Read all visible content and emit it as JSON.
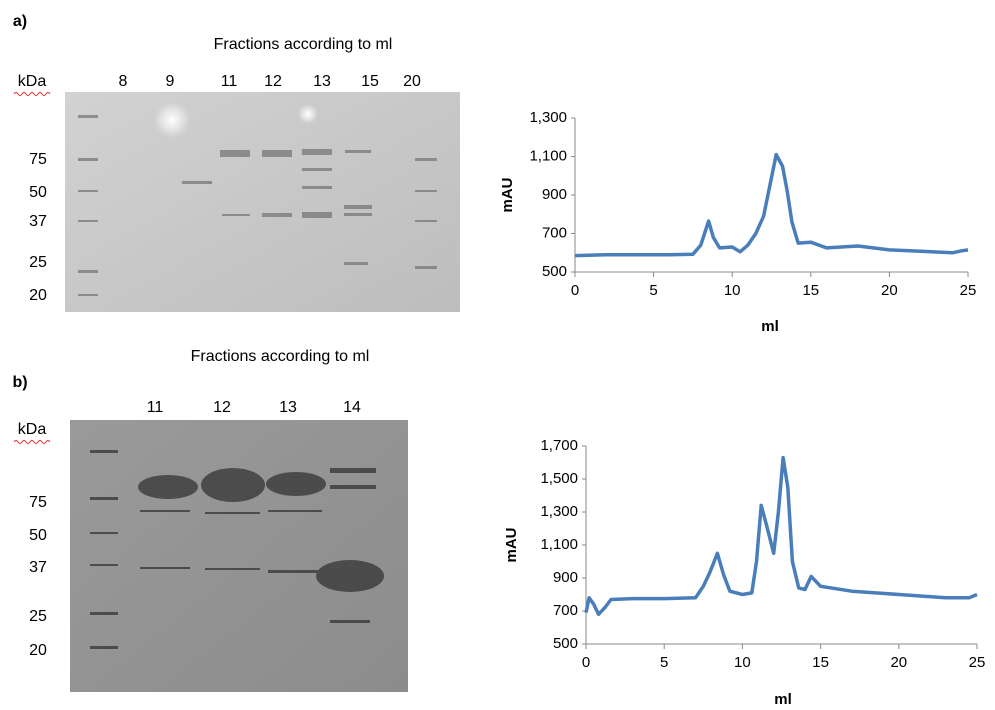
{
  "figure": {
    "panels": [
      {
        "label": "a)",
        "title": "Fractions according to ml",
        "kda": "kDa",
        "lanes": [
          "8",
          "9",
          "11",
          "12",
          "13",
          "15",
          "20"
        ],
        "markers": [
          "75",
          "50",
          "37",
          "25",
          "20"
        ]
      },
      {
        "label": "b)",
        "title": "Fractions according to ml",
        "kda": "kDa",
        "lanes": [
          "11",
          "12",
          "13",
          "14"
        ],
        "markers": [
          "75",
          "50",
          "37",
          "25",
          "20"
        ]
      }
    ]
  },
  "chart_data": [
    {
      "type": "line",
      "xlabel": "ml",
      "ylabel": "mAU",
      "color": "#4a7ebb",
      "x": [
        0,
        2,
        4,
        6,
        7.5,
        8,
        8.5,
        8.8,
        9.2,
        10,
        10.5,
        11,
        11.5,
        12,
        12.4,
        12.8,
        13.2,
        13.5,
        13.8,
        14.2,
        15,
        16,
        18,
        20,
        22,
        24,
        24.6,
        25
      ],
      "values": [
        585,
        590,
        590,
        590,
        592,
        640,
        765,
        680,
        625,
        630,
        605,
        640,
        700,
        790,
        950,
        1110,
        1050,
        920,
        760,
        650,
        655,
        625,
        635,
        615,
        608,
        600,
        610,
        615
      ],
      "xlim": [
        0,
        25
      ],
      "xticks": [
        0,
        5,
        10,
        15,
        20,
        25
      ],
      "ylim": [
        500,
        1300
      ],
      "yticks": [
        500,
        700,
        900,
        {
          "value": 1100,
          "label": "1,100"
        },
        {
          "value": 1300,
          "label": "1,300"
        }
      ],
      "grid": false
    },
    {
      "type": "line",
      "xlabel": "ml",
      "ylabel": "mAU",
      "color": "#4a7ebb",
      "x": [
        0,
        0.2,
        0.5,
        0.8,
        1.2,
        1.6,
        3,
        5,
        7,
        7.5,
        7.9,
        8.4,
        8.8,
        9.2,
        10,
        10.6,
        10.9,
        11.2,
        11.6,
        12,
        12.3,
        12.6,
        12.9,
        13.2,
        13.6,
        14,
        14.4,
        15,
        17,
        20,
        23,
        24.5,
        25
      ],
      "values": [
        690,
        780,
        740,
        680,
        720,
        770,
        775,
        775,
        780,
        850,
        930,
        1050,
        920,
        820,
        800,
        810,
        1000,
        1340,
        1200,
        1050,
        1300,
        1630,
        1450,
        1000,
        840,
        830,
        910,
        850,
        820,
        800,
        780,
        780,
        800
      ],
      "xlim": [
        0,
        25
      ],
      "xticks": [
        0,
        5,
        10,
        15,
        20,
        25
      ],
      "ylim": [
        500,
        1700
      ],
      "yticks": [
        500,
        700,
        900,
        {
          "value": 1100,
          "label": "1,100"
        },
        {
          "value": 1300,
          "label": "1,300"
        },
        {
          "value": 1500,
          "label": "1,500"
        },
        {
          "value": 1700,
          "label": "1,700"
        }
      ],
      "grid": false
    }
  ]
}
